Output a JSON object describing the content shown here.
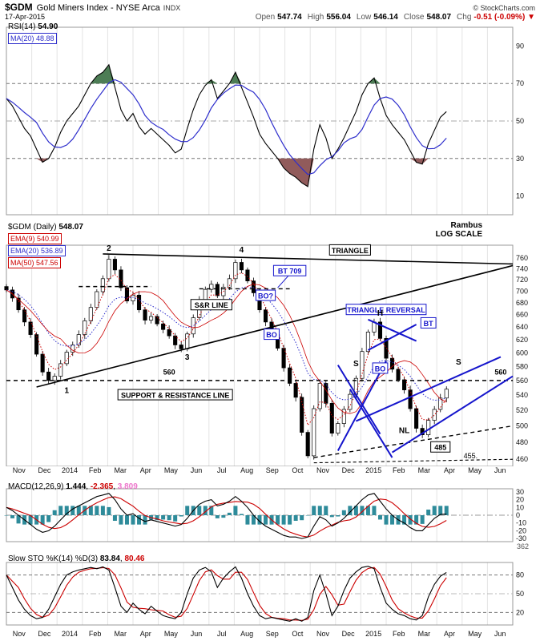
{
  "header": {
    "symbol": "$GDM",
    "name": "Gold Miners Index - NYSE Arca",
    "exchange": "INDX",
    "copyright": "© StockCharts.com",
    "date": "17-Apr-2015",
    "quote": [
      {
        "label": "Open",
        "value": "547.74",
        "negative": false
      },
      {
        "label": "High",
        "value": "556.04",
        "negative": false
      },
      {
        "label": "Low",
        "value": "546.14",
        "negative": false
      },
      {
        "label": "Close",
        "value": "548.07",
        "negative": false
      },
      {
        "label": "Chg",
        "value": "-0.51 (-0.09%) ▼",
        "negative": true
      }
    ]
  },
  "watermark": {
    "line1": "Rambus",
    "line2": "LOG SCALE"
  },
  "months": [
    "Nov",
    "Dec",
    "2014",
    "Feb",
    "Mar",
    "Apr",
    "May",
    "Jun",
    "Jul",
    "Aug",
    "Sep",
    "Oct",
    "Nov",
    "Dec",
    "2015",
    "Feb",
    "Mar",
    "Apr",
    "May",
    "Jun"
  ],
  "chart_data": [
    {
      "id": "rsi",
      "type": "line",
      "label": "RSI(14)",
      "value": "54.90",
      "ma_label": "MA(20)",
      "ma_value": "48.88",
      "ylim": [
        0,
        100
      ],
      "yticks": [
        90,
        70,
        50,
        30,
        10
      ],
      "ref_lines": [
        {
          "y": 70,
          "dash": "4,3",
          "color": "#777777"
        },
        {
          "y": 50,
          "dash": "7,3,2,3",
          "color": "#aaaaaa"
        },
        {
          "y": 30,
          "dash": "4,3",
          "color": "#777777"
        }
      ],
      "overbought": 70,
      "oversold": 30,
      "band_over_color": "#4d7d55",
      "band_under_color": "#915b5b",
      "line_color": "#000000",
      "ma_color": "#2e2ecc",
      "values": [
        62,
        58,
        52,
        46,
        42,
        35,
        28,
        30,
        36,
        44,
        50,
        54,
        58,
        64,
        70,
        74,
        76,
        80,
        68,
        56,
        50,
        54,
        47,
        43,
        46,
        43,
        40,
        37,
        33,
        35,
        46,
        56,
        64,
        69,
        72,
        62,
        66,
        70,
        76,
        68,
        60,
        52,
        43,
        38,
        34,
        30,
        25,
        22,
        20,
        17,
        15,
        35,
        48,
        41,
        30,
        35,
        41,
        48,
        55,
        64,
        70,
        73,
        62,
        53,
        48,
        44,
        40,
        34,
        28,
        27,
        38,
        45,
        52,
        55
      ]
    },
    {
      "id": "price",
      "type": "candlestick",
      "label": "$GDM (Daily)",
      "value": "548.07",
      "overlays": [
        {
          "label": "EMA(9)",
          "value": "540.99",
          "color": "#cc0000"
        },
        {
          "label": "EMA(20)",
          "value": "536.89",
          "color": "#2e2ecc"
        },
        {
          "label": "MA(50)",
          "value": "547.56",
          "color": "#cc0000"
        }
      ],
      "log": true,
      "ylim": [
        452,
        785
      ],
      "yticks": [
        760,
        740,
        720,
        700,
        680,
        660,
        640,
        620,
        600,
        580,
        560,
        540,
        520,
        500,
        480,
        460
      ],
      "closes": [
        702,
        688,
        668,
        648,
        628,
        598,
        572,
        560,
        566,
        584,
        601,
        612,
        628,
        650,
        672,
        699,
        722,
        758,
        738,
        706,
        683,
        693,
        668,
        651,
        657,
        645,
        636,
        626,
        612,
        606,
        629,
        655,
        684,
        703,
        712,
        692,
        707,
        722,
        752,
        738,
        718,
        697,
        668,
        648,
        628,
        607,
        578,
        556,
        537,
        492,
        464,
        522,
        556,
        529,
        491,
        503,
        521,
        541,
        563,
        602,
        632,
        648,
        622,
        592,
        576,
        561,
        547,
        522,
        497,
        489,
        507,
        521,
        536,
        548
      ],
      "lines": [
        {
          "name": "triangle-upper",
          "x1": 16,
          "y1": 768,
          "x2": 84,
          "y2": 749,
          "color": "#000000",
          "w": 1.6
        },
        {
          "name": "triangle-lower",
          "x1": 5,
          "y1": 551,
          "x2": 84,
          "y2": 746,
          "color": "#000000",
          "w": 1.6
        },
        {
          "name": "sr-560",
          "x1": 0,
          "y1": 560,
          "x2": 84,
          "y2": 560,
          "color": "#000000",
          "w": 1.4,
          "dash": "5,4"
        },
        {
          "name": "sr-700",
          "x1": 12,
          "y1": 708,
          "x2": 24,
          "y2": 708,
          "color": "#000000",
          "w": 1.4,
          "dash": "5,4"
        },
        {
          "name": "sr-709",
          "x1": 32,
          "y1": 704,
          "x2": 47,
          "y2": 704,
          "color": "#000000",
          "w": 1.4,
          "dash": "5,4"
        },
        {
          "name": "neckline",
          "x1": 51,
          "y1": 462,
          "x2": 84,
          "y2": 500,
          "color": "#000000",
          "w": 1.4,
          "dash": "5,4"
        },
        {
          "name": "bottom-455",
          "x1": 51,
          "y1": 456,
          "x2": 84,
          "y2": 460,
          "color": "#000000",
          "w": 1.1,
          "dash": "4,3"
        },
        {
          "name": "bt709-pointer",
          "x1": 47,
          "y1": 730,
          "x2": 45,
          "y2": 706,
          "color": "#1515cc",
          "w": 1
        },
        {
          "name": "blue-fall-1",
          "x1": 55,
          "y1": 582,
          "x2": 62,
          "y2": 490,
          "color": "#1515cc",
          "w": 2
        },
        {
          "name": "blue-fall-2",
          "x1": 57,
          "y1": 548,
          "x2": 64,
          "y2": 462,
          "color": "#1515cc",
          "w": 2
        },
        {
          "name": "blue-rise-1",
          "x1": 55,
          "y1": 470,
          "x2": 63,
          "y2": 588,
          "color": "#1515cc",
          "w": 2
        },
        {
          "name": "blue-rise-2",
          "x1": 58,
          "y1": 506,
          "x2": 82,
          "y2": 594,
          "color": "#1515cc",
          "w": 2
        },
        {
          "name": "blue-rise-3",
          "x1": 64,
          "y1": 468,
          "x2": 84,
          "y2": 566,
          "color": "#1515cc",
          "w": 2
        },
        {
          "name": "blue-tri-a",
          "x1": 60,
          "y1": 652,
          "x2": 68,
          "y2": 618,
          "color": "#1515cc",
          "w": 2
        },
        {
          "name": "blue-tri-b",
          "x1": 60,
          "y1": 604,
          "x2": 68,
          "y2": 644,
          "color": "#1515cc",
          "w": 2
        }
      ],
      "boxes": [
        {
          "name": "triangle",
          "text": "TRIANGLE",
          "x": 57,
          "y": 775,
          "color": "#000000"
        },
        {
          "name": "bt-709",
          "text": "BT 709",
          "x": 47,
          "y": 736,
          "color": "#1515cc"
        },
        {
          "name": "bo-question",
          "text": "BO?",
          "x": 43,
          "y": 692,
          "color": "#1515cc"
        },
        {
          "name": "sr-line",
          "text": "S&R LINE",
          "x": 34,
          "y": 676,
          "color": "#000000"
        },
        {
          "name": "bo-mid",
          "text": "BO",
          "x": 44,
          "y": 628,
          "color": "#1515cc"
        },
        {
          "name": "triangle-reversal",
          "text": "TRIANGLE REVERSAL",
          "x": 63,
          "y": 668,
          "color": "#1515cc"
        },
        {
          "name": "bt",
          "text": "BT",
          "x": 70,
          "y": 646,
          "color": "#1515cc"
        },
        {
          "name": "bo-small",
          "text": "BO",
          "x": 62,
          "y": 577,
          "color": "#1515cc"
        },
        {
          "name": "support-resistance",
          "text": "SUPPORT & RESISTANCE LINE",
          "x": 28,
          "y": 540,
          "color": "#000000"
        },
        {
          "name": "level-485",
          "text": "485",
          "x": 72,
          "y": 474,
          "color": "#000000"
        }
      ],
      "texts": [
        {
          "name": "pt-1",
          "text": "1",
          "x": 10,
          "y": 546,
          "bold": true,
          "size": 10
        },
        {
          "name": "pt-2",
          "text": "2",
          "x": 17,
          "y": 779,
          "bold": true,
          "size": 10
        },
        {
          "name": "pt-3",
          "text": "3",
          "x": 30,
          "y": 593,
          "bold": true,
          "size": 10
        },
        {
          "name": "pt-4",
          "text": "4",
          "x": 39,
          "y": 776,
          "bold": true,
          "size": 10
        },
        {
          "name": "h-label",
          "text": "H",
          "x": 62,
          "y": 662,
          "bold": true,
          "size": 10
        },
        {
          "name": "s-left",
          "text": "S",
          "x": 58,
          "y": 584,
          "bold": true,
          "size": 10
        },
        {
          "name": "s-right",
          "text": "S",
          "x": 75,
          "y": 586,
          "bold": true,
          "size": 10
        },
        {
          "name": "nl-label",
          "text": "NL",
          "x": 66,
          "y": 494,
          "bold": true,
          "size": 10
        },
        {
          "name": "level-560-left",
          "text": "560",
          "x": 27,
          "y": 572,
          "bold": true,
          "size": 9
        },
        {
          "name": "level-560-right",
          "text": "560",
          "x": 82,
          "y": 572,
          "bold": true,
          "size": 9
        },
        {
          "name": "level-455",
          "text": "455.",
          "x": 77,
          "y": 464,
          "bold": false,
          "size": 9
        }
      ]
    },
    {
      "id": "macd",
      "type": "macd",
      "label": "MACD(12,26,9)",
      "values_text": [
        {
          "text": "1.444",
          "color": "#000000"
        },
        {
          "text": "-2.365",
          "color": "#cc0000"
        },
        {
          "text": "3.809",
          "color": "#ee77cc"
        }
      ],
      "ylim": [
        -34,
        34
      ],
      "yticks": [
        30,
        20,
        10,
        0,
        -10,
        -20,
        -30
      ],
      "ref_lines": [
        {
          "y": 0,
          "dash": "7,3,2,3",
          "color": "#999999"
        }
      ],
      "hist_color": "#2e8b9a",
      "line_color": "#000000",
      "signal_color": "#cc0000",
      "side_label": "362",
      "values": [
        10,
        6,
        0,
        -6,
        -12,
        -18,
        -22,
        -20,
        -14,
        -6,
        2,
        8,
        12,
        16,
        20,
        24,
        26,
        28,
        20,
        8,
        0,
        2,
        -4,
        -8,
        -6,
        -8,
        -10,
        -12,
        -14,
        -12,
        -4,
        6,
        14,
        18,
        20,
        12,
        14,
        18,
        24,
        18,
        10,
        0,
        -8,
        -14,
        -18,
        -22,
        -26,
        -28,
        -28,
        -30,
        -28,
        -14,
        -2,
        -6,
        -14,
        -10,
        -4,
        4,
        12,
        20,
        26,
        28,
        18,
        8,
        0,
        -6,
        -10,
        -16,
        -20,
        -20,
        -12,
        -4,
        1,
        1.4
      ]
    },
    {
      "id": "sto",
      "type": "sto",
      "label": "Slow STO %K(14) %D(3)",
      "values_text": [
        {
          "text": "83.84",
          "color": "#000000"
        },
        {
          "text": "80.46",
          "color": "#cc0000"
        }
      ],
      "ylim": [
        0,
        100
      ],
      "yticks": [
        80,
        50,
        20
      ],
      "ref_lines": [
        {
          "y": 80,
          "dash": "4,3",
          "color": "#777777"
        },
        {
          "y": 50,
          "dash": "7,3,2,3",
          "color": "#bbbbbb"
        },
        {
          "y": 20,
          "dash": "4,3",
          "color": "#777777"
        }
      ],
      "k_color": "#000000",
      "d_color": "#cc0000",
      "values": [
        80,
        60,
        40,
        25,
        15,
        10,
        12,
        25,
        45,
        65,
        80,
        85,
        88,
        90,
        92,
        90,
        93,
        88,
        60,
        30,
        20,
        35,
        25,
        18,
        30,
        22,
        15,
        12,
        10,
        20,
        50,
        75,
        88,
        92,
        85,
        60,
        75,
        85,
        93,
        75,
        50,
        30,
        15,
        10,
        12,
        10,
        8,
        6,
        10,
        6,
        12,
        55,
        80,
        50,
        15,
        30,
        55,
        75,
        85,
        92,
        94,
        90,
        60,
        35,
        25,
        18,
        15,
        10,
        8,
        15,
        45,
        65,
        78,
        84
      ]
    }
  ]
}
